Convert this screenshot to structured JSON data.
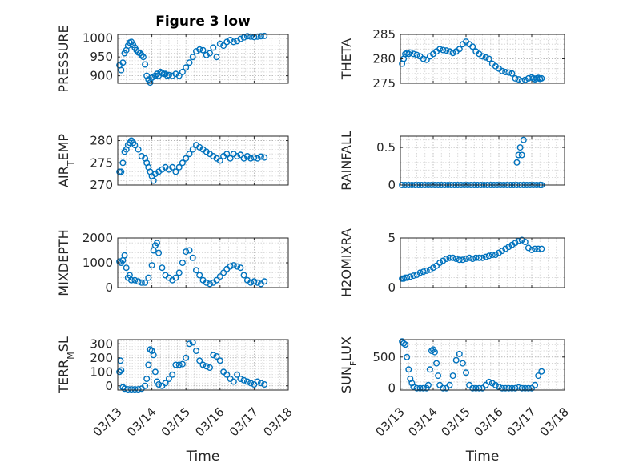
{
  "figure_title": "Figure 3 low",
  "xlabel": "Time",
  "x_tick_labels": [
    "03/13",
    "03/14",
    "03/15",
    "03/16",
    "03/17",
    "03/18"
  ],
  "colors": {
    "marker": "#0072BD",
    "axis": "#262626",
    "grid": "#b0b0b0"
  },
  "chart_data": [
    {
      "type": "scatter",
      "ylabel": "PRESSURE",
      "ylabel_main": "PRESSURE",
      "ylabel_sub": "",
      "ylabel_tail": "",
      "xlim": [
        0,
        5
      ],
      "ylim": [
        880,
        1010
      ],
      "yticks": [
        900,
        950,
        1000
      ],
      "ytick_labels": [
        "900",
        "950",
        "1000"
      ],
      "x": [
        0.05,
        0.1,
        0.15,
        0.2,
        0.25,
        0.3,
        0.35,
        0.4,
        0.45,
        0.5,
        0.55,
        0.6,
        0.65,
        0.7,
        0.75,
        0.8,
        0.85,
        0.9,
        0.95,
        1.0,
        1.05,
        1.1,
        1.15,
        1.2,
        1.25,
        1.3,
        1.35,
        1.4,
        1.45,
        1.5,
        1.6,
        1.7,
        1.8,
        1.9,
        2.0,
        2.1,
        2.2,
        2.3,
        2.4,
        2.5,
        2.6,
        2.7,
        2.8,
        2.9,
        3.0,
        3.1,
        3.2,
        3.3,
        3.4,
        3.5,
        3.6,
        3.7,
        3.8,
        3.9,
        4.0,
        4.1,
        4.2,
        4.3
      ],
      "y": [
        928,
        915,
        935,
        960,
        968,
        980,
        988,
        990,
        982,
        975,
        968,
        962,
        960,
        955,
        950,
        930,
        900,
        890,
        882,
        895,
        898,
        900,
        905,
        900,
        910,
        907,
        905,
        905,
        900,
        902,
        900,
        905,
        900,
        910,
        922,
        935,
        950,
        965,
        970,
        968,
        955,
        960,
        975,
        950,
        985,
        980,
        990,
        995,
        990,
        992,
        998,
        1002,
        1005,
        1004,
        1003,
        1004,
        1005,
        1006
      ]
    },
    {
      "type": "scatter",
      "ylabel": "THETA",
      "ylabel_main": "THETA",
      "ylabel_sub": "",
      "ylabel_tail": "",
      "xlim": [
        0,
        5
      ],
      "ylim": [
        275,
        285
      ],
      "yticks": [
        275,
        280,
        285
      ],
      "ytick_labels": [
        "275",
        "280",
        "285"
      ],
      "x": [
        0.05,
        0.1,
        0.15,
        0.2,
        0.25,
        0.3,
        0.4,
        0.5,
        0.6,
        0.7,
        0.8,
        0.9,
        1.0,
        1.1,
        1.2,
        1.3,
        1.4,
        1.5,
        1.6,
        1.7,
        1.8,
        1.9,
        2.0,
        2.1,
        2.2,
        2.3,
        2.4,
        2.5,
        2.6,
        2.7,
        2.8,
        2.9,
        3.0,
        3.1,
        3.2,
        3.3,
        3.4,
        3.5,
        3.6,
        3.7,
        3.8,
        3.9,
        4.0,
        4.05,
        4.1,
        4.15,
        4.2,
        4.25,
        4.3
      ],
      "y": [
        279,
        280,
        281,
        281.2,
        281,
        281.3,
        281,
        280.8,
        280.5,
        280,
        279.8,
        280.5,
        281,
        281.5,
        282,
        281.8,
        281.7,
        281.5,
        281.2,
        281.5,
        282,
        283,
        283.5,
        283,
        282.5,
        281.5,
        281,
        280.5,
        280.3,
        280,
        279,
        278.5,
        278,
        277.5,
        277.3,
        277.2,
        277,
        276,
        275.8,
        275.5,
        275.7,
        276,
        276.2,
        276,
        275.8,
        276,
        276.1,
        275.9,
        276
      ]
    },
    {
      "type": "scatter",
      "ylabel": "AIR_TEMP",
      "ylabel_main": "AIR",
      "ylabel_sub": "T",
      "ylabel_tail": "EMP",
      "xlim": [
        0,
        5
      ],
      "ylim": [
        270,
        281
      ],
      "yticks": [
        270,
        275,
        280
      ],
      "ytick_labels": [
        "270",
        "275",
        "280"
      ],
      "x": [
        0.05,
        0.1,
        0.15,
        0.2,
        0.25,
        0.3,
        0.35,
        0.4,
        0.45,
        0.5,
        0.6,
        0.7,
        0.8,
        0.85,
        0.9,
        0.95,
        1.0,
        1.05,
        1.1,
        1.2,
        1.3,
        1.4,
        1.5,
        1.6,
        1.7,
        1.8,
        1.9,
        2.0,
        2.1,
        2.2,
        2.3,
        2.4,
        2.5,
        2.6,
        2.7,
        2.8,
        2.9,
        3.0,
        3.1,
        3.2,
        3.3,
        3.4,
        3.5,
        3.6,
        3.7,
        3.8,
        3.9,
        4.0,
        4.1,
        4.2,
        4.3
      ],
      "y": [
        273,
        273,
        275,
        277.5,
        278,
        279,
        279.5,
        280,
        279.5,
        279,
        278,
        276.5,
        276,
        275,
        274,
        273,
        272,
        271,
        272.5,
        273,
        273.5,
        274,
        273.5,
        274,
        273,
        274,
        275,
        276,
        277,
        278,
        279,
        278.5,
        278,
        277.5,
        277,
        276.5,
        276,
        275.5,
        276.5,
        277,
        276,
        277,
        276.5,
        276.8,
        276,
        276.5,
        276,
        276.2,
        276,
        276.4,
        276.2
      ]
    },
    {
      "type": "scatter",
      "ylabel": "RAINFALL",
      "ylabel_main": "RAINFALL",
      "ylabel_sub": "",
      "ylabel_tail": "",
      "xlim": [
        0,
        5
      ],
      "ylim": [
        0,
        0.65
      ],
      "yticks": [
        0,
        0.5
      ],
      "ytick_labels": [
        "0",
        "0.5"
      ],
      "x": [
        0.05,
        0.15,
        0.25,
        0.35,
        0.45,
        0.55,
        0.65,
        0.75,
        0.85,
        0.95,
        1.05,
        1.15,
        1.25,
        1.35,
        1.45,
        1.55,
        1.65,
        1.75,
        1.85,
        1.95,
        2.05,
        2.15,
        2.25,
        2.35,
        2.45,
        2.55,
        2.65,
        2.75,
        2.85,
        2.95,
        3.05,
        3.15,
        3.25,
        3.35,
        3.45,
        3.55,
        3.65,
        3.75,
        3.85,
        3.95,
        4.05,
        4.15,
        4.25,
        4.3,
        3.55,
        3.6,
        3.65,
        3.7,
        3.75
      ],
      "y": [
        0,
        0,
        0,
        0,
        0,
        0,
        0,
        0,
        0,
        0,
        0,
        0,
        0,
        0,
        0,
        0,
        0,
        0,
        0,
        0,
        0,
        0,
        0,
        0,
        0,
        0,
        0,
        0,
        0,
        0,
        0,
        0,
        0,
        0,
        0,
        0,
        0,
        0,
        0,
        0,
        0,
        0,
        0,
        0,
        0.3,
        0.4,
        0.5,
        0.4,
        0.6
      ]
    },
    {
      "type": "scatter",
      "ylabel": "MIXDEPTH",
      "ylabel_main": "MIXDEPTH",
      "ylabel_sub": "",
      "ylabel_tail": "",
      "xlim": [
        0,
        5
      ],
      "ylim": [
        0,
        2000
      ],
      "yticks": [
        0,
        1000,
        2000
      ],
      "ytick_labels": [
        "0",
        "1000",
        "2000"
      ],
      "x": [
        0.05,
        0.1,
        0.15,
        0.2,
        0.25,
        0.3,
        0.35,
        0.4,
        0.5,
        0.6,
        0.7,
        0.8,
        0.9,
        1.0,
        1.05,
        1.1,
        1.15,
        1.2,
        1.3,
        1.4,
        1.5,
        1.6,
        1.7,
        1.8,
        1.9,
        2.0,
        2.1,
        2.2,
        2.3,
        2.4,
        2.5,
        2.6,
        2.7,
        2.8,
        2.9,
        3.0,
        3.1,
        3.2,
        3.3,
        3.4,
        3.5,
        3.6,
        3.7,
        3.8,
        3.9,
        4.0,
        4.1,
        4.2,
        4.3
      ],
      "y": [
        1050,
        1000,
        1100,
        1300,
        800,
        400,
        500,
        300,
        300,
        250,
        200,
        200,
        400,
        900,
        1500,
        1700,
        1800,
        1400,
        800,
        500,
        400,
        300,
        400,
        600,
        1000,
        1450,
        1500,
        1200,
        700,
        500,
        300,
        200,
        150,
        200,
        300,
        450,
        600,
        750,
        850,
        900,
        850,
        800,
        500,
        300,
        200,
        250,
        200,
        150,
        250
      ]
    },
    {
      "type": "scatter",
      "ylabel": "H2OMIXRA",
      "ylabel_main": "H2OMIXRA",
      "ylabel_sub": "",
      "ylabel_tail": "",
      "xlim": [
        0,
        5
      ],
      "ylim": [
        0,
        5
      ],
      "yticks": [
        0,
        5
      ],
      "ytick_labels": [
        "0",
        "5"
      ],
      "x": [
        0.05,
        0.1,
        0.15,
        0.2,
        0.3,
        0.4,
        0.5,
        0.6,
        0.7,
        0.8,
        0.9,
        1.0,
        1.1,
        1.2,
        1.3,
        1.4,
        1.5,
        1.6,
        1.7,
        1.8,
        1.9,
        2.0,
        2.1,
        2.2,
        2.3,
        2.4,
        2.5,
        2.6,
        2.7,
        2.8,
        2.9,
        3.0,
        3.1,
        3.2,
        3.3,
        3.4,
        3.5,
        3.6,
        3.7,
        3.8,
        3.9,
        4.0,
        4.1,
        4.2,
        4.3
      ],
      "y": [
        0.9,
        0.9,
        1.0,
        1.0,
        1.1,
        1.2,
        1.3,
        1.5,
        1.6,
        1.7,
        1.8,
        2.0,
        2.2,
        2.5,
        2.7,
        2.9,
        3.0,
        3.0,
        2.9,
        2.8,
        2.8,
        2.9,
        3.0,
        2.9,
        3.0,
        3.0,
        3.0,
        3.1,
        3.2,
        3.3,
        3.3,
        3.5,
        3.7,
        3.9,
        4.1,
        4.3,
        4.5,
        4.7,
        4.8,
        4.6,
        4.0,
        3.8,
        3.9,
        3.9,
        3.9
      ]
    },
    {
      "type": "scatter",
      "ylabel": "TERR_MSL",
      "ylabel_main": "TERR",
      "ylabel_sub": "M",
      "ylabel_tail": "SL",
      "xlim": [
        0,
        5
      ],
      "ylim": [
        -30,
        330
      ],
      "yticks": [
        0,
        100,
        200,
        300
      ],
      "ytick_labels": [
        "0",
        "100",
        "200",
        "300"
      ],
      "x": [
        0.05,
        0.08,
        0.1,
        0.15,
        0.2,
        0.3,
        0.4,
        0.5,
        0.6,
        0.7,
        0.8,
        0.85,
        0.9,
        0.95,
        1.0,
        1.05,
        1.1,
        1.15,
        1.2,
        1.3,
        1.4,
        1.5,
        1.6,
        1.7,
        1.8,
        1.9,
        2.0,
        2.1,
        2.2,
        2.3,
        2.4,
        2.5,
        2.6,
        2.7,
        2.8,
        2.9,
        3.0,
        3.1,
        3.2,
        3.3,
        3.4,
        3.5,
        3.6,
        3.7,
        3.8,
        3.9,
        4.0,
        4.1,
        4.2,
        4.3
      ],
      "y": [
        100,
        180,
        110,
        -10,
        -20,
        -25,
        -25,
        -25,
        -25,
        -20,
        0,
        50,
        150,
        260,
        250,
        220,
        100,
        30,
        10,
        0,
        20,
        50,
        80,
        150,
        150,
        155,
        200,
        300,
        310,
        250,
        180,
        150,
        140,
        130,
        220,
        210,
        180,
        100,
        80,
        50,
        30,
        80,
        50,
        40,
        30,
        20,
        10,
        30,
        20,
        10
      ]
    },
    {
      "type": "scatter",
      "ylabel": "SUN_FLUX",
      "ylabel_main": "SUN",
      "ylabel_sub": "F",
      "ylabel_tail": "LUX",
      "xlim": [
        0,
        5
      ],
      "ylim": [
        -30,
        780
      ],
      "yticks": [
        0,
        500
      ],
      "ytick_labels": [
        "0",
        "500"
      ],
      "x": [
        0.05,
        0.1,
        0.15,
        0.2,
        0.25,
        0.3,
        0.35,
        0.4,
        0.5,
        0.6,
        0.7,
        0.8,
        0.85,
        0.9,
        0.95,
        1.0,
        1.05,
        1.1,
        1.15,
        1.2,
        1.3,
        1.4,
        1.5,
        1.6,
        1.7,
        1.8,
        1.9,
        2.0,
        2.1,
        2.2,
        2.3,
        2.4,
        2.5,
        2.6,
        2.7,
        2.8,
        2.9,
        3.0,
        3.1,
        3.2,
        3.3,
        3.4,
        3.5,
        3.6,
        3.7,
        3.8,
        3.9,
        4.0,
        4.1,
        4.2,
        4.3
      ],
      "y": [
        750,
        720,
        700,
        500,
        300,
        150,
        80,
        20,
        0,
        0,
        0,
        0,
        50,
        300,
        600,
        620,
        580,
        400,
        200,
        50,
        0,
        0,
        50,
        200,
        450,
        550,
        400,
        250,
        50,
        0,
        0,
        0,
        0,
        50,
        100,
        80,
        50,
        20,
        0,
        0,
        0,
        0,
        0,
        10,
        0,
        0,
        0,
        0,
        50,
        200,
        270
      ]
    }
  ]
}
